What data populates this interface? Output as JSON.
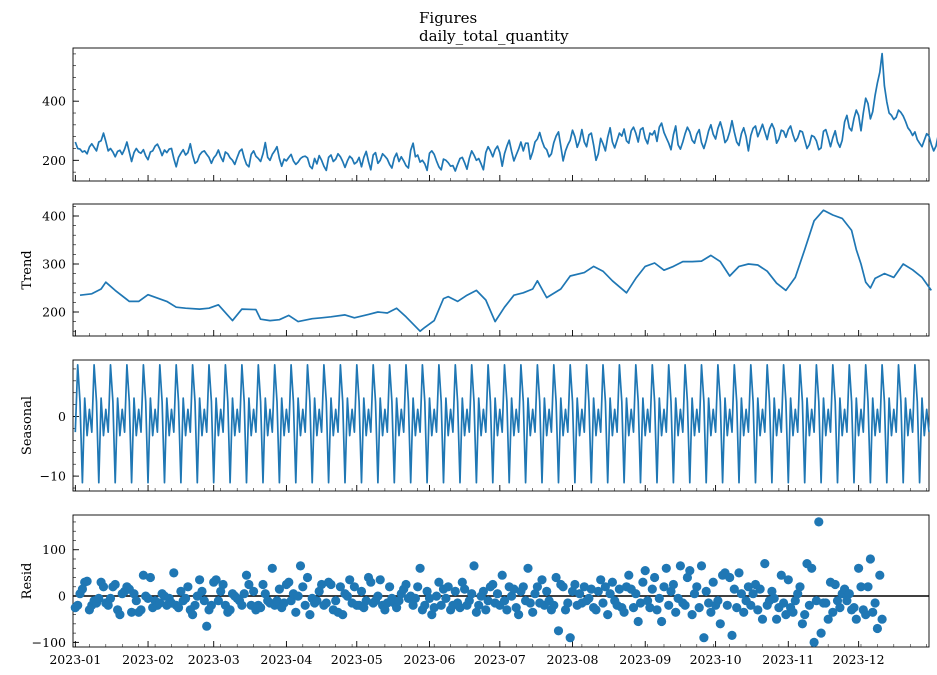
{
  "title_line1": "Figures",
  "title_line2": "daily_total_quantity",
  "chart_data": [
    {
      "type": "line",
      "title": "",
      "ylabel": "",
      "x_range": [
        "2022-12-31",
        "2023-12-31"
      ],
      "ylim": [
        130,
        580
      ],
      "yticks": [
        200,
        400
      ],
      "series": [
        {
          "x_start": "2023-01-01",
          "x_step_days": 1,
          "color": "#1f77b4",
          "values": [
            262,
            240,
            238,
            228,
            232,
            222,
            245,
            256,
            244,
            232,
            262,
            266,
            292,
            264,
            232,
            240,
            228,
            212,
            230,
            234,
            220,
            238,
            262,
            228,
            196,
            226,
            240,
            228,
            224,
            236,
            215,
            202,
            228,
            232,
            248,
            255,
            238,
            216,
            235,
            226,
            238,
            240,
            206,
            178,
            210,
            224,
            236,
            218,
            226,
            256,
            218,
            190,
            196,
            218,
            228,
            232,
            220,
            210,
            190,
            208,
            218,
            235,
            212,
            196,
            228,
            222,
            208,
            200,
            186,
            210,
            230,
            238,
            208,
            186,
            178,
            220,
            232,
            214,
            206,
            196,
            222,
            260,
            210,
            200,
            220,
            232,
            246,
            206,
            180,
            204,
            198,
            210,
            220,
            198,
            186,
            194,
            206,
            212,
            214,
            208,
            180,
            172,
            206,
            188,
            216,
            200,
            180,
            166,
            210,
            218,
            196,
            204,
            222,
            212,
            196,
            176,
            198,
            214,
            206,
            188,
            194,
            210,
            178,
            210,
            230,
            196,
            168,
            218,
            226,
            190,
            200,
            222,
            214,
            204,
            186,
            174,
            208,
            224,
            196,
            212,
            198,
            182,
            174,
            234,
            258,
            212,
            218,
            194,
            200,
            188,
            166,
            224,
            232,
            220,
            198,
            178,
            168,
            204,
            200,
            192,
            180,
            182,
            164,
            186,
            206,
            210,
            192,
            170,
            206,
            232,
            218,
            200,
            206,
            188,
            168,
            226,
            246,
            232,
            212,
            236,
            248,
            226,
            180,
            222,
            248,
            268,
            230,
            198,
            218,
            238,
            262,
            232,
            258,
            258,
            204,
            228,
            262,
            272,
            294,
            266,
            244,
            236,
            212,
            222,
            260,
            282,
            296,
            248,
            198,
            232,
            252,
            268,
            302,
            280,
            244,
            266,
            304,
            262,
            246,
            286,
            292,
            252,
            200,
            222,
            274,
            256,
            232,
            278,
            310,
            262,
            242,
            268,
            292,
            282,
            306,
            266,
            258,
            300,
            312,
            292,
            262,
            304,
            310,
            274,
            256,
            292,
            286,
            300,
            264,
            312,
            326,
            294,
            276,
            258,
            236,
            286,
            316,
            252,
            238,
            262,
            290,
            312,
            296,
            268,
            258,
            288,
            304,
            260,
            240,
            266,
            300,
            320,
            288,
            272,
            308,
            330,
            302,
            260,
            270,
            296,
            334,
            296,
            262,
            250,
            290,
            310,
            280,
            232,
            284,
            308,
            316,
            280,
            300,
            322,
            296,
            270,
            306,
            324,
            306,
            258,
            272,
            302,
            298,
            278,
            304,
            316,
            286,
            264,
            276,
            300,
            296,
            268,
            240,
            254,
            284,
            280,
            266,
            236,
            242,
            298,
            304,
            276,
            246,
            276,
            300,
            262,
            244,
            268,
            330,
            352,
            310,
            300,
            342,
            370,
            352,
            300,
            360,
            410,
            392,
            340,
            364,
            420,
            462,
            498,
            561,
            452,
            398,
            360,
            352,
            338,
            346,
            370,
            362,
            350,
            332,
            310,
            300,
            284,
            296,
            270,
            258,
            246,
            268,
            290,
            282,
            254,
            232,
            248,
            288,
            302,
            276,
            240,
            258,
            342,
            312,
            266,
            226,
            244,
            274,
            296,
            258,
            232,
            212,
            236,
            262,
            244,
            228,
            204,
            200
          ]
        }
      ]
    },
    {
      "type": "line",
      "title": "",
      "ylabel": "Trend",
      "x_range": [
        "2022-12-31",
        "2023-12-31"
      ],
      "ylim": [
        150,
        425
      ],
      "yticks": [
        200,
        300,
        400
      ],
      "series": [
        {
          "x_start": "2023-01-01",
          "x_step_days": 1,
          "color": "#1f77b4",
          "knots_days": [
            3,
            8,
            12,
            14,
            18,
            24,
            28,
            32,
            40,
            44,
            48,
            54,
            58,
            62,
            68,
            72,
            78,
            80,
            84,
            88,
            92,
            96,
            102,
            106,
            110,
            116,
            120,
            126,
            130,
            134,
            138,
            142,
            148,
            150,
            154,
            158,
            160,
            164,
            168,
            172,
            176,
            180,
            184,
            188,
            192,
            196,
            198,
            202,
            208,
            212,
            218,
            222,
            226,
            230,
            236,
            240,
            244,
            248,
            252,
            256,
            260,
            264,
            268,
            272,
            276,
            280,
            284,
            288,
            292,
            296,
            300,
            304,
            308,
            312,
            316,
            320,
            324,
            328,
            332,
            334,
            336,
            338,
            340,
            342,
            346,
            350,
            354,
            358,
            362,
            366
          ],
          "values": [
            235,
            238,
            248,
            262,
            245,
            222,
            222,
            236,
            222,
            210,
            208,
            206,
            208,
            215,
            182,
            206,
            205,
            185,
            182,
            184,
            193,
            180,
            186,
            188,
            190,
            194,
            188,
            195,
            200,
            198,
            208,
            190,
            160,
            168,
            182,
            228,
            232,
            222,
            235,
            245,
            225,
            180,
            210,
            235,
            240,
            248,
            265,
            230,
            248,
            275,
            282,
            295,
            285,
            265,
            240,
            270,
            295,
            302,
            287,
            295,
            305,
            305,
            306,
            318,
            305,
            275,
            295,
            300,
            298,
            285,
            260,
            245,
            272,
            330,
            390,
            412,
            402,
            395,
            370,
            330,
            300,
            262,
            250,
            270,
            280,
            272,
            300,
            288,
            272,
            245
          ]
        }
      ]
    },
    {
      "type": "line",
      "title": "",
      "ylabel": "Seasonal",
      "x_range": [
        "2022-12-31",
        "2023-12-31"
      ],
      "ylim": [
        -12.5,
        9.5
      ],
      "yticks": [
        -10,
        0
      ],
      "series": [
        {
          "x_start": "2023-01-01",
          "x_step_days": 1,
          "period_days": 7,
          "color": "#1f77b4",
          "weekly_pattern": [
            -2.6,
            8.7,
            2.5,
            -11.1,
            3.1,
            -3.2,
            1.2
          ]
        }
      ]
    },
    {
      "type": "scatter",
      "title": "",
      "ylabel": "Resid",
      "xlabel": "",
      "x_range": [
        "2022-12-31",
        "2023-12-31"
      ],
      "ylim": [
        -110,
        175
      ],
      "yticks": [
        -100,
        0,
        100
      ],
      "baseline": 0,
      "x_tick_labels": [
        "2023-01",
        "2023-02",
        "2023-03",
        "2023-04",
        "2023-05",
        "2023-06",
        "2023-07",
        "2023-08",
        "2023-09",
        "2023-10",
        "2023-11",
        "2023-12"
      ],
      "x_tick_dates": [
        "2023-01-01",
        "2023-02-01",
        "2023-03-01",
        "2023-04-01",
        "2023-05-01",
        "2023-06-01",
        "2023-07-01",
        "2023-08-01",
        "2023-09-01",
        "2023-10-01",
        "2023-11-01",
        "2023-12-01"
      ],
      "series": [
        {
          "x_start": "2023-01-01",
          "x_step_days": 1,
          "color": "#1f77b4",
          "values": [
            -25,
            -20,
            5,
            15,
            30,
            32,
            -30,
            -20,
            -10,
            -15,
            -5,
            30,
            20,
            -15,
            -20,
            -5,
            20,
            25,
            -30,
            -40,
            5,
            10,
            20,
            15,
            -35,
            5,
            -10,
            -35,
            -30,
            45,
            0,
            -5,
            40,
            -25,
            -10,
            -20,
            -15,
            5,
            0,
            -20,
            -5,
            -15,
            50,
            -20,
            -25,
            10,
            -10,
            -5,
            20,
            -30,
            -40,
            -20,
            0,
            35,
            10,
            -10,
            -65,
            -30,
            -20,
            30,
            35,
            -10,
            10,
            25,
            -20,
            -35,
            -30,
            5,
            0,
            -5,
            -10,
            -20,
            5,
            45,
            25,
            -20,
            10,
            -30,
            -20,
            -25,
            25,
            5,
            -10,
            -15,
            60,
            -20,
            -10,
            15,
            -25,
            -15,
            25,
            30,
            -10,
            5,
            -35,
            0,
            65,
            20,
            -20,
            40,
            -40,
            -5,
            -15,
            -10,
            10,
            25,
            -20,
            -15,
            30,
            25,
            -30,
            -10,
            -35,
            20,
            -40,
            5,
            0,
            35,
            -15,
            20,
            -20,
            -20,
            10,
            -25,
            -10,
            40,
            30,
            -15,
            -10,
            0,
            35,
            -20,
            -30,
            -15,
            20,
            -5,
            -15,
            -25,
            -10,
            5,
            15,
            25,
            -5,
            0,
            -20,
            -5,
            20,
            60,
            -30,
            -20,
            10,
            -5,
            -40,
            -25,
            0,
            30,
            -20,
            15,
            -5,
            20,
            -30,
            -20,
            10,
            -15,
            -25,
            30,
            15,
            -20,
            -10,
            5,
            65,
            -35,
            -20,
            0,
            10,
            -30,
            -10,
            20,
            25,
            -15,
            5,
            -20,
            45,
            -10,
            -30,
            20,
            0,
            15,
            -25,
            -40,
            10,
            20,
            -10,
            60,
            -15,
            -35,
            5,
            20,
            -15,
            35,
            -20,
            10,
            -10,
            -30,
            -20,
            40,
            -75,
            25,
            20,
            -30,
            -15,
            -90,
            10,
            25,
            -20,
            5,
            -15,
            20,
            -10,
            -5,
            15,
            -25,
            -30,
            10,
            35,
            -15,
            20,
            -40,
            5,
            30,
            -10,
            -20,
            15,
            -25,
            -35,
            20,
            45,
            15,
            -25,
            5,
            -55,
            -15,
            30,
            55,
            -10,
            -25,
            15,
            40,
            -30,
            -5,
            -55,
            20,
            60,
            -20,
            10,
            25,
            -35,
            -5,
            65,
            -15,
            -20,
            40,
            55,
            -40,
            5,
            20,
            -25,
            65,
            -90,
            10,
            -15,
            -35,
            30,
            -20,
            -10,
            -60,
            45,
            50,
            -20,
            40,
            -85,
            15,
            -25,
            50,
            5,
            -35,
            -10,
            20,
            -20,
            5,
            25,
            -30,
            15,
            -50,
            70,
            -20,
            -10,
            10,
            -5,
            -50,
            -25,
            45,
            -15,
            -40,
            35,
            -25,
            -35,
            -10,
            5,
            20,
            -60,
            -40,
            70,
            -20,
            60,
            -100,
            -10,
            160,
            -80,
            -15,
            -15,
            -50,
            30,
            -35,
            25,
            -10,
            -25,
            5,
            15,
            -10,
            5,
            -30,
            -25,
            -50,
            60,
            20,
            -30,
            -40,
            20,
            80,
            -35,
            -15,
            -70,
            45,
            -50
          ]
        }
      ]
    }
  ]
}
